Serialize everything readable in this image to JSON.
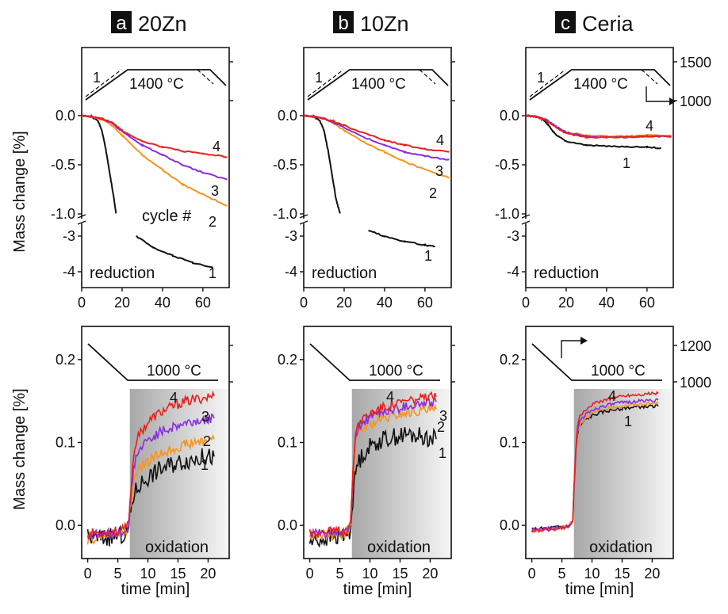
{
  "figure": {
    "colors": {
      "c1": "#111111",
      "c2": "#f7941d",
      "c3": "#8a2be2",
      "c4": "#e8201c",
      "profile": "#111111",
      "shade_dark": "#a8a8a8",
      "shade_light": "#f6f6f6"
    },
    "columns": [
      {
        "letter": "a",
        "name": "20Zn"
      },
      {
        "letter": "b",
        "name": "10Zn"
      },
      {
        "letter": "c",
        "name": "Ceria"
      }
    ],
    "y_label": "Mass change [%]",
    "x_label": "time [min]",
    "reduction_label": "reduction",
    "oxidation_label": "oxidation",
    "cycle_label": "cycle #",
    "red_temp_label": "1400 °C",
    "ox_temp_label": "1000 °C",
    "red_profile_ticks": [
      "1500",
      "1000"
    ],
    "ox_profile_ticks": [
      "1200",
      "1000"
    ]
  },
  "chart_data": [
    {
      "type": "line",
      "panel": "a-reduction",
      "xlim": [
        0,
        73
      ],
      "xticks": [
        "0",
        "20",
        "40",
        "60"
      ],
      "ylim_upper": [
        -1.0,
        0.0
      ],
      "yticks_upper": [
        "0.0",
        "-0.5",
        "-1.0"
      ],
      "yticks_lower": [
        "-3",
        "-4"
      ],
      "ylim_lower": [
        -4.4,
        -2.7
      ],
      "series": [
        {
          "name": "1",
          "x": [
            0,
            5,
            8,
            10,
            12,
            14,
            16,
            17,
            27,
            35,
            45,
            55,
            65
          ],
          "y": [
            0,
            -0.01,
            -0.05,
            -0.15,
            -0.35,
            -0.6,
            -0.85,
            -1.0,
            -3.0,
            -3.3,
            -3.55,
            -3.75,
            -3.9
          ]
        },
        {
          "name": "2",
          "x": [
            0,
            5,
            10,
            15,
            20,
            30,
            40,
            50,
            60,
            72
          ],
          "y": [
            0,
            -0.01,
            -0.04,
            -0.1,
            -0.2,
            -0.4,
            -0.55,
            -0.7,
            -0.8,
            -0.92
          ]
        },
        {
          "name": "3",
          "x": [
            0,
            5,
            10,
            15,
            20,
            30,
            40,
            50,
            60,
            72
          ],
          "y": [
            0,
            -0.01,
            -0.03,
            -0.08,
            -0.16,
            -0.3,
            -0.4,
            -0.5,
            -0.58,
            -0.65
          ]
        },
        {
          "name": "4",
          "x": [
            0,
            5,
            10,
            15,
            20,
            30,
            40,
            50,
            60,
            72
          ],
          "y": [
            0,
            -0.01,
            -0.03,
            -0.07,
            -0.15,
            -0.26,
            -0.32,
            -0.36,
            -0.39,
            -0.42
          ]
        }
      ]
    },
    {
      "type": "line",
      "panel": "b-reduction",
      "xlim": [
        0,
        73
      ],
      "xticks": [
        "0",
        "20",
        "40",
        "60"
      ],
      "ylim_upper": [
        -1.0,
        0.0
      ],
      "yticks_upper": [
        "0.0",
        "-0.5",
        "-1.0"
      ],
      "yticks_lower": [
        "-3",
        "-4"
      ],
      "ylim_lower": [
        -4.4,
        -2.7
      ],
      "series": [
        {
          "name": "1",
          "x": [
            0,
            5,
            8,
            10,
            12,
            14,
            16,
            18,
            32,
            40,
            50,
            60,
            65
          ],
          "y": [
            0,
            -0.01,
            -0.05,
            -0.15,
            -0.35,
            -0.6,
            -0.85,
            -1.0,
            -2.85,
            -3.0,
            -3.15,
            -3.25,
            -3.3
          ]
        },
        {
          "name": "2",
          "x": [
            0,
            5,
            10,
            15,
            20,
            30,
            40,
            50,
            60,
            72
          ],
          "y": [
            0,
            -0.01,
            -0.03,
            -0.08,
            -0.15,
            -0.27,
            -0.37,
            -0.47,
            -0.55,
            -0.63
          ]
        },
        {
          "name": "3",
          "x": [
            0,
            5,
            10,
            15,
            20,
            30,
            40,
            50,
            60,
            72
          ],
          "y": [
            0,
            -0.01,
            -0.03,
            -0.07,
            -0.12,
            -0.22,
            -0.3,
            -0.37,
            -0.41,
            -0.45
          ]
        },
        {
          "name": "4",
          "x": [
            0,
            5,
            10,
            15,
            20,
            30,
            40,
            50,
            60,
            72
          ],
          "y": [
            0,
            -0.01,
            -0.03,
            -0.06,
            -0.1,
            -0.18,
            -0.25,
            -0.3,
            -0.34,
            -0.37
          ]
        }
      ]
    },
    {
      "type": "line",
      "panel": "c-reduction",
      "xlim": [
        0,
        73
      ],
      "xticks": [
        "0",
        "20",
        "40",
        "60"
      ],
      "ylim_upper": [
        -1.0,
        0.0
      ],
      "yticks_upper": [
        "0.0",
        "-0.5",
        "-1.0"
      ],
      "yticks_lower": [
        "-3",
        "-4"
      ],
      "ylim_lower": [
        -4.4,
        -2.7
      ],
      "series": [
        {
          "name": "1",
          "x": [
            0,
            5,
            8,
            10,
            12,
            15,
            20,
            30,
            40,
            50,
            60,
            67
          ],
          "y": [
            0,
            -0.01,
            -0.03,
            -0.07,
            -0.12,
            -0.2,
            -0.26,
            -0.3,
            -0.31,
            -0.32,
            -0.32,
            -0.33
          ]
        },
        {
          "name": "2",
          "x": [
            0,
            5,
            10,
            15,
            20,
            30,
            40,
            50,
            60,
            72
          ],
          "y": [
            0,
            -0.01,
            -0.04,
            -0.11,
            -0.17,
            -0.2,
            -0.21,
            -0.21,
            -0.2,
            -0.2
          ]
        },
        {
          "name": "3",
          "x": [
            0,
            5,
            10,
            15,
            20,
            30,
            40,
            50,
            60,
            72
          ],
          "y": [
            0,
            -0.01,
            -0.04,
            -0.11,
            -0.17,
            -0.21,
            -0.22,
            -0.22,
            -0.21,
            -0.21
          ]
        },
        {
          "name": "4",
          "x": [
            0,
            5,
            10,
            15,
            20,
            30,
            40,
            50,
            60,
            72
          ],
          "y": [
            0,
            -0.01,
            -0.05,
            -0.12,
            -0.18,
            -0.22,
            -0.22,
            -0.22,
            -0.21,
            -0.21
          ]
        }
      ]
    },
    {
      "type": "line",
      "panel": "a-oxidation",
      "xlim": [
        -1,
        23.5
      ],
      "xticks": [
        "0",
        "5",
        "10",
        "15",
        "20"
      ],
      "ylim": [
        -0.04,
        0.24
      ],
      "yticks": [
        "0.0",
        "0.1",
        "0.2"
      ],
      "series": [
        {
          "name": "1",
          "x": [
            0,
            3,
            6,
            6.8,
            7,
            7.3,
            7.6,
            8,
            9,
            10,
            11,
            12,
            14,
            16,
            18,
            20,
            21
          ],
          "y": [
            -0.015,
            -0.015,
            -0.012,
            -0.005,
            0.01,
            0.025,
            0.035,
            0.042,
            0.052,
            0.058,
            0.063,
            0.068,
            0.074,
            0.078,
            0.081,
            0.083,
            0.083
          ]
        },
        {
          "name": "2",
          "x": [
            0,
            3,
            6,
            6.8,
            7,
            7.3,
            7.6,
            8,
            9,
            10,
            11,
            12,
            14,
            16,
            18,
            20,
            21
          ],
          "y": [
            -0.018,
            -0.013,
            -0.01,
            -0.002,
            0.015,
            0.035,
            0.052,
            0.062,
            0.072,
            0.077,
            0.082,
            0.086,
            0.092,
            0.097,
            0.1,
            0.103,
            0.104
          ]
        },
        {
          "name": "3",
          "x": [
            0,
            3,
            6,
            6.8,
            7,
            7.3,
            7.6,
            8,
            9,
            10,
            11,
            12,
            14,
            16,
            18,
            20,
            21
          ],
          "y": [
            -0.012,
            -0.011,
            -0.008,
            0.0,
            0.02,
            0.045,
            0.068,
            0.082,
            0.095,
            0.102,
            0.108,
            0.112,
            0.118,
            0.123,
            0.126,
            0.128,
            0.129
          ]
        },
        {
          "name": "4",
          "x": [
            0,
            3,
            6,
            6.8,
            7,
            7.3,
            7.6,
            8,
            9,
            10,
            11,
            12,
            14,
            16,
            18,
            20,
            21
          ],
          "y": [
            -0.01,
            -0.008,
            -0.006,
            0.002,
            0.025,
            0.055,
            0.085,
            0.1,
            0.115,
            0.124,
            0.131,
            0.136,
            0.143,
            0.149,
            0.152,
            0.155,
            0.156
          ]
        }
      ]
    },
    {
      "type": "line",
      "panel": "b-oxidation",
      "xlim": [
        -1,
        23.5
      ],
      "xticks": [
        "0",
        "5",
        "10",
        "15",
        "20"
      ],
      "ylim": [
        -0.04,
        0.24
      ],
      "yticks": [
        "0.0",
        "0.1",
        "0.2"
      ],
      "series": [
        {
          "name": "1",
          "x": [
            0,
            3,
            6,
            6.8,
            7,
            7.3,
            7.6,
            8,
            9,
            10,
            11,
            12,
            14,
            16,
            18,
            20,
            21
          ],
          "y": [
            -0.02,
            -0.015,
            -0.012,
            -0.005,
            0.02,
            0.045,
            0.065,
            0.075,
            0.088,
            0.095,
            0.1,
            0.103,
            0.107,
            0.109,
            0.108,
            0.105,
            0.104
          ]
        },
        {
          "name": "2",
          "x": [
            0,
            3,
            6,
            6.8,
            7,
            7.3,
            7.6,
            8,
            9,
            10,
            11,
            12,
            14,
            16,
            18,
            20,
            21
          ],
          "y": [
            -0.012,
            -0.012,
            -0.01,
            0.0,
            0.03,
            0.07,
            0.1,
            0.11,
            0.118,
            0.122,
            0.125,
            0.128,
            0.132,
            0.136,
            0.138,
            0.139,
            0.14
          ]
        },
        {
          "name": "3",
          "x": [
            0,
            3,
            6,
            6.8,
            7,
            7.3,
            7.6,
            8,
            9,
            10,
            11,
            12,
            14,
            16,
            18,
            20,
            21
          ],
          "y": [
            -0.01,
            -0.01,
            -0.008,
            0.002,
            0.035,
            0.075,
            0.105,
            0.117,
            0.125,
            0.13,
            0.133,
            0.136,
            0.14,
            0.144,
            0.146,
            0.148,
            0.149
          ]
        },
        {
          "name": "4",
          "x": [
            0,
            3,
            6,
            6.8,
            7,
            7.3,
            7.6,
            8,
            9,
            10,
            11,
            12,
            14,
            16,
            18,
            20,
            21
          ],
          "y": [
            -0.008,
            -0.008,
            -0.006,
            0.004,
            0.04,
            0.08,
            0.11,
            0.122,
            0.13,
            0.135,
            0.139,
            0.142,
            0.146,
            0.15,
            0.152,
            0.154,
            0.155
          ]
        }
      ]
    },
    {
      "type": "line",
      "panel": "c-oxidation",
      "xlim": [
        -1,
        23.5
      ],
      "xticks": [
        "0",
        "5",
        "10",
        "15",
        "20"
      ],
      "ylim": [
        -0.04,
        0.24
      ],
      "yticks": [
        "0.0",
        "0.1",
        "0.2"
      ],
      "series": [
        {
          "name": "1",
          "x": [
            0,
            3,
            6,
            6.8,
            7,
            7.3,
            7.6,
            8,
            9,
            10,
            11,
            12,
            14,
            16,
            18,
            20,
            21
          ],
          "y": [
            -0.005,
            -0.003,
            -0.001,
            0.005,
            0.04,
            0.085,
            0.11,
            0.12,
            0.128,
            0.132,
            0.135,
            0.137,
            0.14,
            0.142,
            0.143,
            0.144,
            0.144
          ]
        },
        {
          "name": "2",
          "x": [
            0,
            3,
            6,
            6.8,
            7,
            7.3,
            7.6,
            8,
            9,
            10,
            11,
            12,
            14,
            16,
            18,
            20,
            21
          ],
          "y": [
            -0.006,
            -0.004,
            -0.001,
            0.005,
            0.04,
            0.086,
            0.112,
            0.122,
            0.13,
            0.135,
            0.138,
            0.14,
            0.143,
            0.145,
            0.146,
            0.147,
            0.147
          ]
        },
        {
          "name": "3",
          "x": [
            0,
            3,
            6,
            6.8,
            7,
            7.3,
            7.6,
            8,
            9,
            10,
            11,
            12,
            14,
            16,
            18,
            20,
            21
          ],
          "y": [
            -0.006,
            -0.004,
            -0.001,
            0.005,
            0.042,
            0.088,
            0.115,
            0.126,
            0.134,
            0.139,
            0.142,
            0.144,
            0.147,
            0.149,
            0.15,
            0.151,
            0.151
          ]
        },
        {
          "name": "4",
          "x": [
            0,
            3,
            6,
            6.8,
            7,
            7.3,
            7.6,
            8,
            9,
            10,
            11,
            12,
            14,
            16,
            18,
            20,
            21
          ],
          "y": [
            -0.007,
            -0.005,
            -0.002,
            0.005,
            0.045,
            0.092,
            0.12,
            0.131,
            0.14,
            0.145,
            0.149,
            0.151,
            0.155,
            0.157,
            0.158,
            0.159,
            0.159
          ]
        }
      ]
    }
  ]
}
